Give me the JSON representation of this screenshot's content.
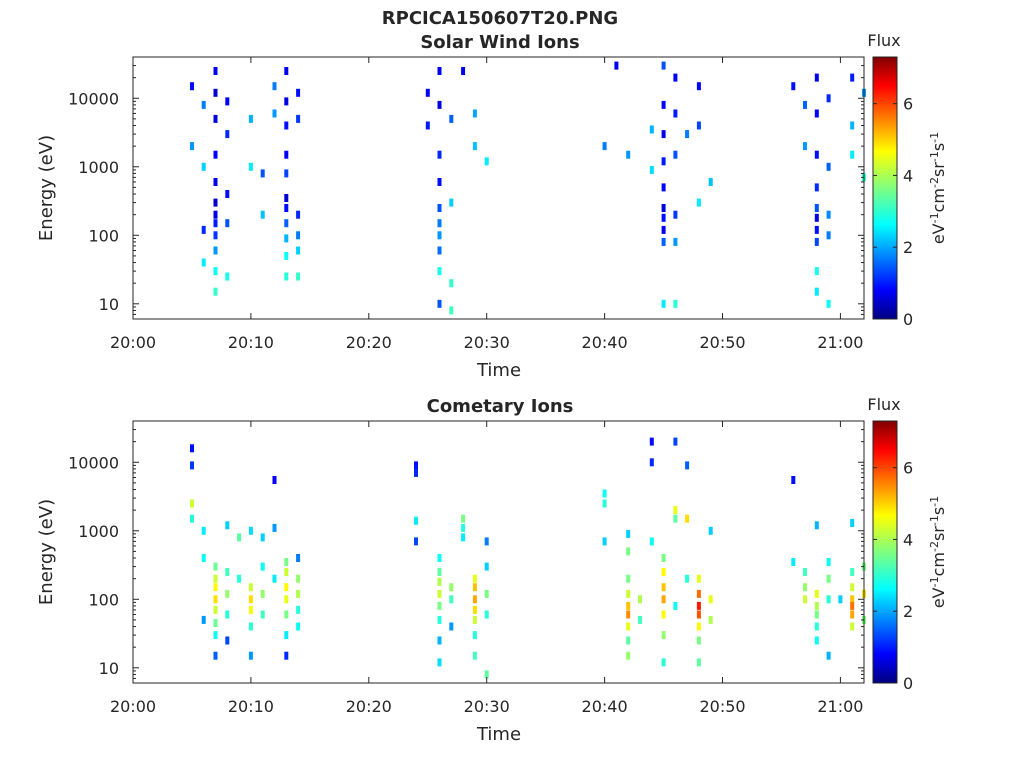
{
  "figure_title": "RPCICA150607T20.PNG",
  "chart_data": [
    {
      "type": "heatmap",
      "title": "Solar Wind Ions",
      "xlabel": "Time",
      "ylabel": "Energy (eV)",
      "y_scale": "log",
      "ylim": [
        6,
        40000
      ],
      "xlim": [
        "20:00",
        "21:02"
      ],
      "x_ticks": [
        "20:00",
        "20:10",
        "20:20",
        "20:30",
        "20:40",
        "20:50",
        "21:00"
      ],
      "y_ticks": [
        "10",
        "100",
        "1000",
        "10000"
      ],
      "colorbar": {
        "title": "Flux",
        "label": "eV-1cm-2sr-1s-1",
        "range": [
          0,
          7.3
        ],
        "ticks": [
          "0",
          "2",
          "4",
          "6"
        ],
        "colormap": "jet"
      },
      "cells": [
        [
          "20:05",
          15000,
          1.0
        ],
        [
          "20:05",
          2000,
          2.0
        ],
        [
          "20:06",
          1000,
          2.4
        ],
        [
          "20:06",
          8000,
          1.8
        ],
        [
          "20:06",
          120,
          1.2
        ],
        [
          "20:06",
          40,
          2.6
        ],
        [
          "20:07",
          25000,
          0.8
        ],
        [
          "20:07",
          12000,
          0.6
        ],
        [
          "20:07",
          5000,
          0.7
        ],
        [
          "20:07",
          1500,
          0.9
        ],
        [
          "20:07",
          600,
          0.8
        ],
        [
          "20:07",
          300,
          0.5
        ],
        [
          "20:07",
          200,
          0.7
        ],
        [
          "20:07",
          150,
          1.1
        ],
        [
          "20:07",
          100,
          1.3
        ],
        [
          "20:07",
          60,
          2.0
        ],
        [
          "20:07",
          30,
          2.8
        ],
        [
          "20:07",
          15,
          3.1
        ],
        [
          "20:08",
          9000,
          0.9
        ],
        [
          "20:08",
          3000,
          1.2
        ],
        [
          "20:08",
          400,
          1.0
        ],
        [
          "20:08",
          150,
          1.5
        ],
        [
          "20:08",
          25,
          2.9
        ],
        [
          "20:10",
          5000,
          2.2
        ],
        [
          "20:10",
          1000,
          2.6
        ],
        [
          "20:11",
          800,
          1.5
        ],
        [
          "20:11",
          200,
          2.3
        ],
        [
          "20:12",
          15000,
          1.8
        ],
        [
          "20:12",
          6000,
          2.0
        ],
        [
          "20:13",
          25000,
          0.8
        ],
        [
          "20:13",
          9000,
          0.7
        ],
        [
          "20:13",
          4000,
          1.0
        ],
        [
          "20:13",
          1500,
          0.9
        ],
        [
          "20:13",
          800,
          1.4
        ],
        [
          "20:13",
          350,
          0.6
        ],
        [
          "20:13",
          250,
          1.0
        ],
        [
          "20:13",
          150,
          1.6
        ],
        [
          "20:13",
          90,
          2.2
        ],
        [
          "20:13",
          50,
          2.8
        ],
        [
          "20:13",
          25,
          3.0
        ],
        [
          "20:14",
          200,
          1.2
        ],
        [
          "20:14",
          100,
          1.8
        ],
        [
          "20:14",
          60,
          2.4
        ],
        [
          "20:14",
          25,
          3.1
        ],
        [
          "20:14",
          12000,
          1.0
        ],
        [
          "20:14",
          5000,
          1.3
        ],
        [
          "20:25",
          12000,
          0.9
        ],
        [
          "20:25",
          4000,
          1.1
        ],
        [
          "20:26",
          25000,
          0.8
        ],
        [
          "20:26",
          8000,
          0.7
        ],
        [
          "20:26",
          1500,
          1.2
        ],
        [
          "20:26",
          600,
          1.0
        ],
        [
          "20:26",
          250,
          1.5
        ],
        [
          "20:26",
          150,
          1.8
        ],
        [
          "20:26",
          100,
          2.0
        ],
        [
          "20:26",
          60,
          1.7
        ],
        [
          "20:26",
          30,
          2.9
        ],
        [
          "20:26",
          10,
          1.5
        ],
        [
          "20:27",
          5000,
          1.6
        ],
        [
          "20:27",
          300,
          2.4
        ],
        [
          "20:27",
          20,
          3.1
        ],
        [
          "20:27",
          8,
          3.2
        ],
        [
          "20:28",
          25000,
          0.8
        ],
        [
          "20:29",
          6000,
          2.1
        ],
        [
          "20:29",
          2000,
          2.3
        ],
        [
          "20:30",
          1200,
          2.6
        ],
        [
          "20:41",
          30000,
          0.8
        ],
        [
          "20:40",
          2000,
          1.8
        ],
        [
          "20:42",
          1500,
          2.0
        ],
        [
          "20:44",
          3500,
          2.2
        ],
        [
          "20:44",
          900,
          2.5
        ],
        [
          "20:45",
          30000,
          1.5
        ],
        [
          "20:45",
          8000,
          0.9
        ],
        [
          "20:45",
          3000,
          0.8
        ],
        [
          "20:45",
          1200,
          1.1
        ],
        [
          "20:45",
          500,
          0.9
        ],
        [
          "20:45",
          250,
          0.7
        ],
        [
          "20:45",
          180,
          1.0
        ],
        [
          "20:45",
          120,
          0.8
        ],
        [
          "20:45",
          80,
          1.6
        ],
        [
          "20:45",
          10,
          2.6
        ],
        [
          "20:46",
          20000,
          0.9
        ],
        [
          "20:46",
          6000,
          1.1
        ],
        [
          "20:46",
          1500,
          1.5
        ],
        [
          "20:46",
          200,
          1.3
        ],
        [
          "20:46",
          80,
          2.0
        ],
        [
          "20:46",
          10,
          3.0
        ],
        [
          "20:47",
          3000,
          1.8
        ],
        [
          "20:48",
          15000,
          0.9
        ],
        [
          "20:48",
          4000,
          1.4
        ],
        [
          "20:49",
          600,
          2.3
        ],
        [
          "20:48",
          300,
          2.6
        ],
        [
          "20:56",
          15000,
          1.0
        ],
        [
          "20:57",
          8000,
          1.6
        ],
        [
          "20:57",
          2000,
          2.0
        ],
        [
          "20:58",
          20000,
          0.8
        ],
        [
          "20:58",
          6000,
          0.9
        ],
        [
          "20:58",
          1500,
          1.0
        ],
        [
          "20:58",
          500,
          1.2
        ],
        [
          "20:58",
          250,
          1.5
        ],
        [
          "20:58",
          180,
          0.7
        ],
        [
          "20:58",
          120,
          1.0
        ],
        [
          "20:58",
          80,
          1.4
        ],
        [
          "20:58",
          30,
          2.9
        ],
        [
          "20:58",
          15,
          2.6
        ],
        [
          "20:59",
          10000,
          1.2
        ],
        [
          "20:59",
          1000,
          1.6
        ],
        [
          "20:59",
          200,
          1.9
        ],
        [
          "20:59",
          100,
          1.8
        ],
        [
          "20:59",
          10,
          2.8
        ],
        [
          "21:01",
          20000,
          1.1
        ],
        [
          "21:02",
          12000,
          2.0
        ],
        [
          "21:01",
          4000,
          2.2
        ],
        [
          "21:01",
          1500,
          2.6
        ],
        [
          "21:02",
          700,
          3.1
        ]
      ]
    },
    {
      "type": "heatmap",
      "title": "Cometary Ions",
      "xlabel": "Time",
      "ylabel": "Energy (eV)",
      "y_scale": "log",
      "ylim": [
        6,
        40000
      ],
      "xlim": [
        "20:00",
        "21:02"
      ],
      "x_ticks": [
        "20:00",
        "20:10",
        "20:20",
        "20:30",
        "20:40",
        "20:50",
        "21:00"
      ],
      "y_ticks": [
        "10",
        "100",
        "1000",
        "10000"
      ],
      "colorbar": {
        "title": "Flux",
        "label": "eV-1cm-2sr-1s-1",
        "range": [
          0,
          7.3
        ],
        "ticks": [
          "0",
          "2",
          "4",
          "6"
        ],
        "colormap": "jet"
      },
      "cells": [
        [
          "20:05",
          16000,
          1.0
        ],
        [
          "20:05",
          9000,
          1.3
        ],
        [
          "20:05",
          2500,
          4.2
        ],
        [
          "20:05",
          1500,
          3.0
        ],
        [
          "20:06",
          1000,
          2.6
        ],
        [
          "20:06",
          400,
          2.8
        ],
        [
          "20:06",
          50,
          2.0
        ],
        [
          "20:07",
          300,
          3.5
        ],
        [
          "20:07",
          200,
          4.2
        ],
        [
          "20:07",
          150,
          4.6
        ],
        [
          "20:07",
          100,
          4.8
        ],
        [
          "20:07",
          70,
          4.2
        ],
        [
          "20:07",
          45,
          3.5
        ],
        [
          "20:07",
          30,
          2.8
        ],
        [
          "20:07",
          15,
          1.6
        ],
        [
          "20:08",
          250,
          3.2
        ],
        [
          "20:08",
          120,
          3.8
        ],
        [
          "20:08",
          60,
          3.0
        ],
        [
          "20:08",
          25,
          1.4
        ],
        [
          "20:08",
          1200,
          2.4
        ],
        [
          "20:09",
          800,
          3.4
        ],
        [
          "20:09",
          200,
          3.0
        ],
        [
          "20:10",
          150,
          4.2
        ],
        [
          "20:10",
          100,
          4.8
        ],
        [
          "20:10",
          70,
          4.5
        ],
        [
          "20:10",
          40,
          3.0
        ],
        [
          "20:10",
          15,
          2.0
        ],
        [
          "20:10",
          1000,
          2.5
        ],
        [
          "20:11",
          120,
          3.8
        ],
        [
          "20:11",
          60,
          3.2
        ],
        [
          "20:11",
          300,
          2.8
        ],
        [
          "20:11",
          800,
          2.4
        ],
        [
          "20:12",
          200,
          2.6
        ],
        [
          "20:12",
          5500,
          0.9
        ],
        [
          "20:12",
          1100,
          2.0
        ],
        [
          "20:13",
          350,
          3.6
        ],
        [
          "20:13",
          250,
          4.2
        ],
        [
          "20:13",
          150,
          4.6
        ],
        [
          "20:13",
          100,
          4.4
        ],
        [
          "20:13",
          60,
          3.6
        ],
        [
          "20:13",
          30,
          2.6
        ],
        [
          "20:13",
          15,
          1.2
        ],
        [
          "20:14",
          400,
          1.8
        ],
        [
          "20:14",
          200,
          3.8
        ],
        [
          "20:14",
          120,
          4.0
        ],
        [
          "20:14",
          70,
          3.0
        ],
        [
          "20:14",
          40,
          2.8
        ],
        [
          "20:24",
          9000,
          1.0
        ],
        [
          "20:24",
          7000,
          1.2
        ],
        [
          "20:24",
          1400,
          2.6
        ],
        [
          "20:24",
          700,
          1.4
        ],
        [
          "20:26",
          400,
          2.8
        ],
        [
          "20:26",
          250,
          3.4
        ],
        [
          "20:26",
          180,
          4.0
        ],
        [
          "20:26",
          120,
          4.2
        ],
        [
          "20:26",
          80,
          3.6
        ],
        [
          "20:26",
          50,
          3.0
        ],
        [
          "20:26",
          25,
          2.2
        ],
        [
          "20:26",
          12,
          2.5
        ],
        [
          "20:27",
          150,
          3.8
        ],
        [
          "20:27",
          100,
          3.2
        ],
        [
          "20:27",
          40,
          2.0
        ],
        [
          "20:28",
          1500,
          3.6
        ],
        [
          "20:28",
          1100,
          3.0
        ],
        [
          "20:28",
          800,
          2.6
        ],
        [
          "20:29",
          200,
          4.4
        ],
        [
          "20:29",
          150,
          5.0
        ],
        [
          "20:29",
          100,
          5.2
        ],
        [
          "20:29",
          70,
          4.8
        ],
        [
          "20:29",
          50,
          4.2
        ],
        [
          "20:29",
          30,
          3.0
        ],
        [
          "20:29",
          15,
          3.2
        ],
        [
          "20:30",
          300,
          2.4
        ],
        [
          "20:30",
          120,
          3.6
        ],
        [
          "20:30",
          60,
          3.0
        ],
        [
          "20:30",
          700,
          1.8
        ],
        [
          "20:30",
          8,
          3.4
        ],
        [
          "20:40",
          3500,
          2.8
        ],
        [
          "20:40",
          2500,
          3.0
        ],
        [
          "20:40",
          700,
          2.4
        ],
        [
          "20:42",
          900,
          2.4
        ],
        [
          "20:42",
          500,
          3.6
        ],
        [
          "20:42",
          200,
          3.6
        ],
        [
          "20:42",
          120,
          4.2
        ],
        [
          "20:42",
          80,
          5.0
        ],
        [
          "20:42",
          60,
          5.4
        ],
        [
          "20:42",
          40,
          4.4
        ],
        [
          "20:42",
          25,
          3.4
        ],
        [
          "20:42",
          15,
          3.8
        ],
        [
          "20:43",
          100,
          4.0
        ],
        [
          "20:43",
          50,
          3.2
        ],
        [
          "20:44",
          20000,
          1.0
        ],
        [
          "20:44",
          10000,
          1.2
        ],
        [
          "20:44",
          700,
          2.8
        ],
        [
          "20:45",
          400,
          3.6
        ],
        [
          "20:45",
          250,
          4.6
        ],
        [
          "20:45",
          150,
          5.0
        ],
        [
          "20:45",
          100,
          5.2
        ],
        [
          "20:45",
          60,
          4.6
        ],
        [
          "20:45",
          30,
          3.8
        ],
        [
          "20:45",
          12,
          3.0
        ],
        [
          "20:46",
          20000,
          1.4
        ],
        [
          "20:46",
          2000,
          4.4
        ],
        [
          "20:46",
          1500,
          3.4
        ],
        [
          "20:46",
          80,
          2.8
        ],
        [
          "20:47",
          1500,
          4.8
        ],
        [
          "20:47",
          9000,
          1.6
        ],
        [
          "20:47",
          200,
          3.0
        ],
        [
          "20:48",
          200,
          4.4
        ],
        [
          "20:48",
          120,
          5.6
        ],
        [
          "20:48",
          80,
          6.2
        ],
        [
          "20:48",
          60,
          5.8
        ],
        [
          "20:48",
          40,
          4.6
        ],
        [
          "20:48",
          25,
          3.6
        ],
        [
          "20:48",
          12,
          3.4
        ],
        [
          "20:49",
          1000,
          2.4
        ],
        [
          "20:49",
          100,
          4.4
        ],
        [
          "20:49",
          50,
          4.0
        ],
        [
          "20:56",
          5500,
          1.0
        ],
        [
          "20:56",
          350,
          2.6
        ],
        [
          "20:57",
          250,
          3.2
        ],
        [
          "20:57",
          150,
          3.8
        ],
        [
          "20:57",
          100,
          4.2
        ],
        [
          "20:58",
          120,
          4.4
        ],
        [
          "20:58",
          80,
          4.0
        ],
        [
          "20:58",
          60,
          3.6
        ],
        [
          "20:58",
          40,
          3.0
        ],
        [
          "20:58",
          25,
          2.8
        ],
        [
          "20:58",
          1200,
          2.2
        ],
        [
          "20:59",
          200,
          3.6
        ],
        [
          "20:59",
          100,
          3.0
        ],
        [
          "20:59",
          15,
          2.2
        ],
        [
          "20:59",
          350,
          2.8
        ],
        [
          "21:00",
          100,
          2.4
        ],
        [
          "21:01",
          250,
          3.2
        ],
        [
          "21:01",
          150,
          4.2
        ],
        [
          "21:01",
          100,
          5.0
        ],
        [
          "21:01",
          80,
          5.6
        ],
        [
          "21:01",
          60,
          5.2
        ],
        [
          "21:01",
          40,
          4.2
        ],
        [
          "21:01",
          1300,
          2.4
        ],
        [
          "21:02",
          300,
          3.6
        ],
        [
          "21:02",
          120,
          4.8
        ],
        [
          "21:02",
          50,
          3.6
        ]
      ]
    }
  ]
}
